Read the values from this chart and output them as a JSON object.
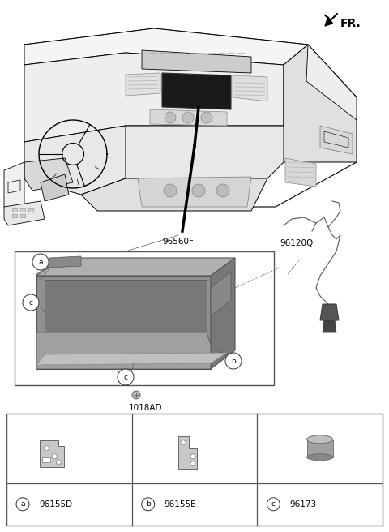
{
  "bg_color": "#ffffff",
  "fr_label": "FR.",
  "line_color": "#000000",
  "text_color": "#000000",
  "part_label_96560F": "96560F",
  "part_label_96120Q": "96120Q",
  "part_label_1018AD": "1018AD",
  "legend_rows": [
    {
      "letter": "a",
      "code": "96155D"
    },
    {
      "letter": "b",
      "code": "96155E"
    },
    {
      "letter": "c",
      "code": "96173"
    }
  ],
  "car_sketch_color": "#000000",
  "unit_gray": "#8a8a8a",
  "unit_gray_light": "#b0b0b0",
  "unit_gray_dark": "#6a6a6a",
  "wire_color": "#7a7a7a",
  "bracket_gray": "#c0c0c0",
  "screw_gray": "#999999"
}
